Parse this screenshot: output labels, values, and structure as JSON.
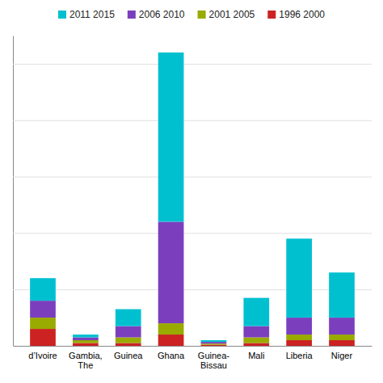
{
  "chart_data": {
    "type": "bar",
    "stacked": true,
    "categories": [
      "d’Ivoire",
      "Gambia,\nThe",
      "Guinea",
      "Ghana",
      "Guinea-\nBissau",
      "Mali",
      "Liberia",
      "Niger"
    ],
    "series": [
      {
        "name": "1996 2000",
        "color": "#CC2222",
        "values": [
          3,
          0.5,
          0.5,
          2,
          0.2,
          0.5,
          1,
          1
        ]
      },
      {
        "name": "2001 2005",
        "color": "#99AA00",
        "values": [
          2,
          0.5,
          1,
          2,
          0.2,
          1,
          1,
          1
        ]
      },
      {
        "name": "2006 2010",
        "color": "#7B3FBE",
        "values": [
          3,
          0.5,
          2,
          18,
          0.3,
          2,
          3,
          3
        ]
      },
      {
        "name": "2011 2015",
        "color": "#00C0D0",
        "values": [
          4,
          0.5,
          3,
          30,
          0.3,
          5,
          14,
          8
        ]
      }
    ],
    "ylim": [
      0,
      55
    ],
    "yticks": [
      0,
      10,
      20,
      30,
      40,
      50
    ],
    "grid": true,
    "legend": "top",
    "tick_labels": "x"
  }
}
